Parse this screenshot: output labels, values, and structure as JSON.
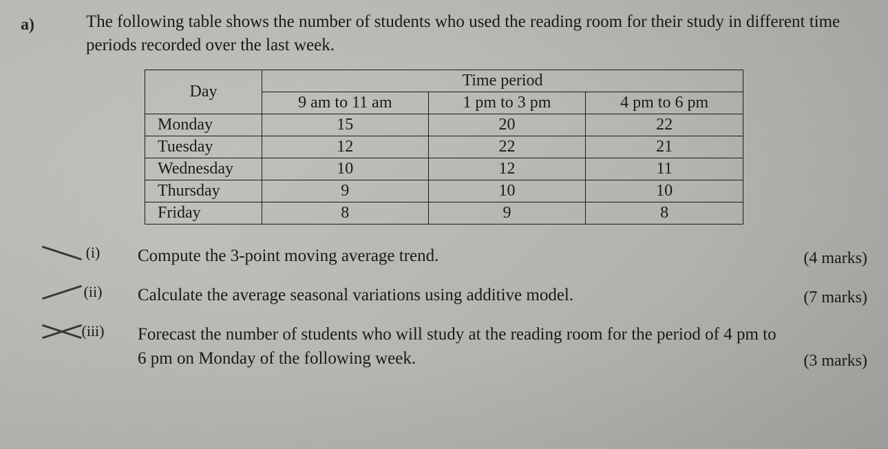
{
  "question_label": "a)",
  "intro_text": "The following table shows the number of students who used the reading room for their study in different time periods recorded over the last week.",
  "table": {
    "day_header": "Day",
    "period_header": "Time period",
    "columns": [
      "9 am to 11 am",
      "1 pm to 3 pm",
      "4 pm to 6 pm"
    ],
    "rows": [
      {
        "day": "Monday",
        "vals": [
          "15",
          "20",
          "22"
        ]
      },
      {
        "day": "Tuesday",
        "vals": [
          "12",
          "22",
          "21"
        ]
      },
      {
        "day": "Wednesday",
        "vals": [
          "10",
          "12",
          "11"
        ]
      },
      {
        "day": "Thursday",
        "vals": [
          "9",
          "10",
          "10"
        ]
      },
      {
        "day": "Friday",
        "vals": [
          "8",
          "9",
          "8"
        ]
      }
    ]
  },
  "parts": {
    "i": {
      "label": "(i)",
      "text": "Compute the 3-point moving average trend.",
      "marks": "(4 marks)"
    },
    "ii": {
      "label": "(ii)",
      "text": "Calculate the average seasonal variations using additive model.",
      "marks": "(7 marks)"
    },
    "iii": {
      "label": "(iii)",
      "text": "Forecast the number of students who will study at the reading room for the period of 4 pm to 6 pm on Monday of the following week.",
      "marks": "(3 marks)"
    }
  },
  "style": {
    "font_family": "Times New Roman",
    "body_font_size_pt": 18,
    "table_border_color": "#1a1a1a",
    "text_color": "#1a1a1a",
    "background_gradient": [
      "#c8c8c4",
      "#b8b8b4",
      "#a8a8a4"
    ]
  }
}
